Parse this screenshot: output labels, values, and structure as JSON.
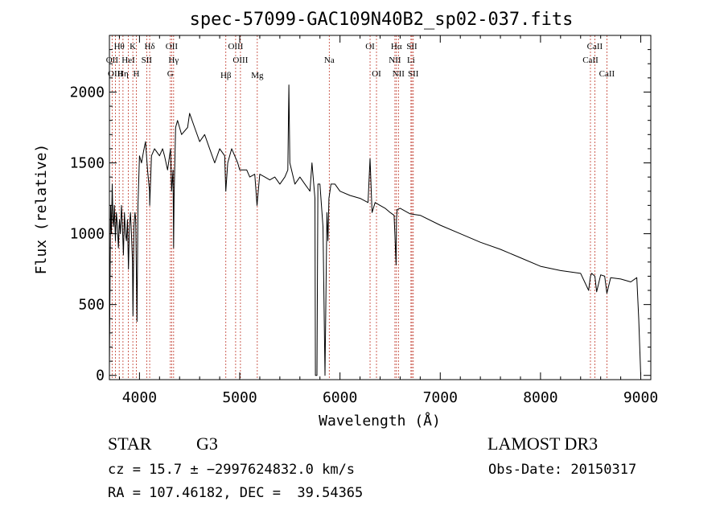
{
  "chart_data": {
    "type": "line",
    "title": "spec-57099-GAC109N40B2_sp02-037.fits",
    "xlabel": "Wavelength (Å)",
    "ylabel": "Flux (relative)",
    "xlim": [
      3700,
      9100
    ],
    "ylim": [
      -30,
      2400
    ],
    "xticks": [
      4000,
      5000,
      6000,
      7000,
      8000,
      9000
    ],
    "xtick_labels": [
      "4000",
      "5000",
      "6000",
      "7000",
      "8000",
      "9000"
    ],
    "yticks": [
      0,
      500,
      1000,
      1500,
      2000
    ],
    "ytick_labels": [
      "0",
      "500",
      "1000",
      "1500",
      "2000"
    ],
    "grid": false,
    "series": [
      {
        "color": "#000000",
        "x": [
          3700,
          3712,
          3720,
          3728,
          3735,
          3742,
          3750,
          3760,
          3770,
          3780,
          3790,
          3800,
          3810,
          3820,
          3830,
          3840,
          3850,
          3860,
          3870,
          3880,
          3890,
          3900,
          3910,
          3920,
          3930,
          3935,
          3945,
          3955,
          3962,
          3970,
          3975,
          3985,
          4000,
          4020,
          4040,
          4060,
          4080,
          4100,
          4102,
          4120,
          4150,
          4200,
          4230,
          4250,
          4280,
          4300,
          4310,
          4320,
          4335,
          4340,
          4345,
          4360,
          4380,
          4420,
          4480,
          4500,
          4550,
          4600,
          4650,
          4700,
          4750,
          4800,
          4850,
          4861,
          4880,
          4920,
          4950,
          4980,
          5000,
          5030,
          5070,
          5100,
          5150,
          5172,
          5200,
          5250,
          5300,
          5350,
          5400,
          5450,
          5480,
          5490,
          5500,
          5550,
          5600,
          5650,
          5700,
          5720,
          5750,
          5755,
          5770,
          5780,
          5800,
          5830,
          5850,
          5870,
          5880,
          5890,
          5900,
          5910,
          5950,
          6000,
          6100,
          6200,
          6280,
          6300,
          6320,
          6350,
          6400,
          6450,
          6500,
          6540,
          6560,
          6563,
          6570,
          6600,
          6700,
          6800,
          7000,
          7200,
          7400,
          7600,
          7800,
          8000,
          8200,
          8400,
          8480,
          8498,
          8510,
          8542,
          8560,
          8600,
          8640,
          8662,
          8700,
          8800,
          8900,
          8960,
          8980,
          9000
        ],
        "y": [
          50,
          1200,
          1000,
          1350,
          1100,
          1050,
          1200,
          950,
          1150,
          1050,
          900,
          1100,
          1000,
          1200,
          1050,
          850,
          1150,
          1000,
          950,
          1100,
          750,
          1050,
          1150,
          1000,
          800,
          420,
          1050,
          1150,
          1100,
          650,
          380,
          1200,
          1550,
          1500,
          1580,
          1650,
          1450,
          1300,
          1200,
          1550,
          1600,
          1550,
          1600,
          1550,
          1450,
          1550,
          1600,
          1300,
          1450,
          900,
          1250,
          1750,
          1800,
          1700,
          1750,
          1850,
          1750,
          1650,
          1700,
          1600,
          1500,
          1600,
          1550,
          1300,
          1500,
          1600,
          1550,
          1500,
          1450,
          1450,
          1450,
          1400,
          1420,
          1200,
          1420,
          1400,
          1380,
          1400,
          1350,
          1400,
          1450,
          2050,
          1500,
          1350,
          1400,
          1350,
          1300,
          1500,
          1250,
          0,
          0,
          1350,
          1350,
          1050,
          0,
          1150,
          950,
          1250,
          1300,
          1350,
          1350,
          1300,
          1270,
          1250,
          1220,
          1530,
          1150,
          1220,
          1200,
          1180,
          1150,
          1130,
          780,
          1100,
          1170,
          1180,
          1140,
          1130,
          1060,
          1000,
          940,
          890,
          830,
          770,
          740,
          720,
          600,
          700,
          720,
          700,
          590,
          710,
          700,
          580,
          690,
          680,
          660,
          690,
          400,
          0
        ]
      }
    ],
    "lines": [
      {
        "label": "Hθ",
        "wave": 3797.9,
        "row": 1
      },
      {
        "label": "OII",
        "wave": 3727.0,
        "row": 2
      },
      {
        "label": "OIII",
        "wave": 3760.0,
        "row": 3
      },
      {
        "label": "Hη",
        "wave": 3835.4,
        "row": 3
      },
      {
        "label": "HeI",
        "wave": 3888.6,
        "row": 2
      },
      {
        "label": "K",
        "wave": 3933.7,
        "row": 1
      },
      {
        "label": "H",
        "wave": 3968.5,
        "row": 3
      },
      {
        "label": "Hδ",
        "wave": 4101.7,
        "row": 1
      },
      {
        "label": "SII",
        "wave": 4072.0,
        "row": 2
      },
      {
        "label": "OII",
        "wave": 4321.0,
        "row": 1
      },
      {
        "label": "Hγ",
        "wave": 4340.5,
        "row": 2
      },
      {
        "label": "G",
        "wave": 4307.9,
        "row": 3
      },
      {
        "label": "Hβ",
        "wave": 4861.3,
        "row": 4
      },
      {
        "label": "OIII",
        "wave": 4959.0,
        "row": 1
      },
      {
        "label": "OIII",
        "wave": 5007.0,
        "row": 2
      },
      {
        "label": "Mg",
        "wave": 5175.0,
        "row": 4
      },
      {
        "label": "Na",
        "wave": 5893.0,
        "row": 2
      },
      {
        "label": "OI",
        "wave": 6300.0,
        "row": 1
      },
      {
        "label": "OI",
        "wave": 6364.0,
        "row": 3
      },
      {
        "label": "Hα",
        "wave": 6562.8,
        "row": 1
      },
      {
        "label": "NII",
        "wave": 6548.0,
        "row": 2
      },
      {
        "label": "NII",
        "wave": 6583.0,
        "row": 3
      },
      {
        "label": "SII",
        "wave": 6717.0,
        "row": 1
      },
      {
        "label": "Li",
        "wave": 6707.8,
        "row": 2
      },
      {
        "label": "SII",
        "wave": 6731.0,
        "row": 3
      },
      {
        "label": "CaII",
        "wave": 8542.0,
        "row": 1
      },
      {
        "label": "CaII",
        "wave": 8498.0,
        "row": 2
      },
      {
        "label": "CaII",
        "wave": 8662.0,
        "row": 3
      }
    ]
  },
  "info": {
    "object_class": "STAR",
    "subclass": "G3",
    "survey": "LAMOST DR3",
    "redshift_line": "cz = 15.7 ± −2997624832.0 km/s",
    "obs_date_line": "Obs-Date: 20150317",
    "radec_line": "RA = 107.46182, DEC =  39.54365"
  }
}
